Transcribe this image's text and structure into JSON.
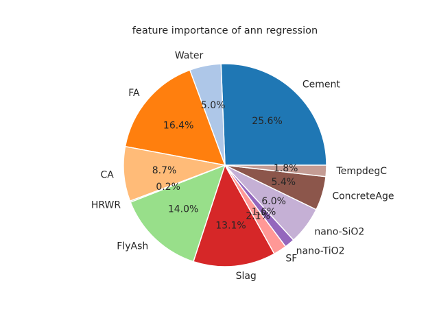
{
  "chart_data": {
    "type": "pie",
    "title": "feature importance of ann regression",
    "start_angle_deg": 0,
    "direction": "counterclockwise",
    "slices": [
      {
        "label": "Cement",
        "value": 25.6,
        "pct_label": "25.6%",
        "color": "#1f77b4"
      },
      {
        "label": "Water",
        "value": 5.0,
        "pct_label": "5.0%",
        "color": "#aec7e8"
      },
      {
        "label": "FA",
        "value": 16.4,
        "pct_label": "16.4%",
        "color": "#ff7f0e"
      },
      {
        "label": "CA",
        "value": 8.7,
        "pct_label": "8.7%",
        "color": "#ffbb78"
      },
      {
        "label": "HRWR",
        "value": 0.2,
        "pct_label": "0.2%",
        "color": "#2ca02c"
      },
      {
        "label": "FlyAsh",
        "value": 14.0,
        "pct_label": "14.0%",
        "color": "#98df8a"
      },
      {
        "label": "Slag",
        "value": 13.1,
        "pct_label": "13.1%",
        "color": "#d62728"
      },
      {
        "label": "SF",
        "value": 2.1,
        "pct_label": "2.1%",
        "color": "#ff9896"
      },
      {
        "label": "nano-TiO2",
        "value": 1.6,
        "pct_label": "1.6%",
        "color": "#9467bd"
      },
      {
        "label": "nano-SiO2",
        "value": 6.0,
        "pct_label": "6.0%",
        "color": "#c5b0d5"
      },
      {
        "label": "ConcreteAge",
        "value": 5.4,
        "pct_label": "5.4%",
        "color": "#8c564b"
      },
      {
        "label": "TempdegC",
        "value": 1.8,
        "pct_label": "1.8%",
        "color": "#c49c94"
      }
    ]
  }
}
